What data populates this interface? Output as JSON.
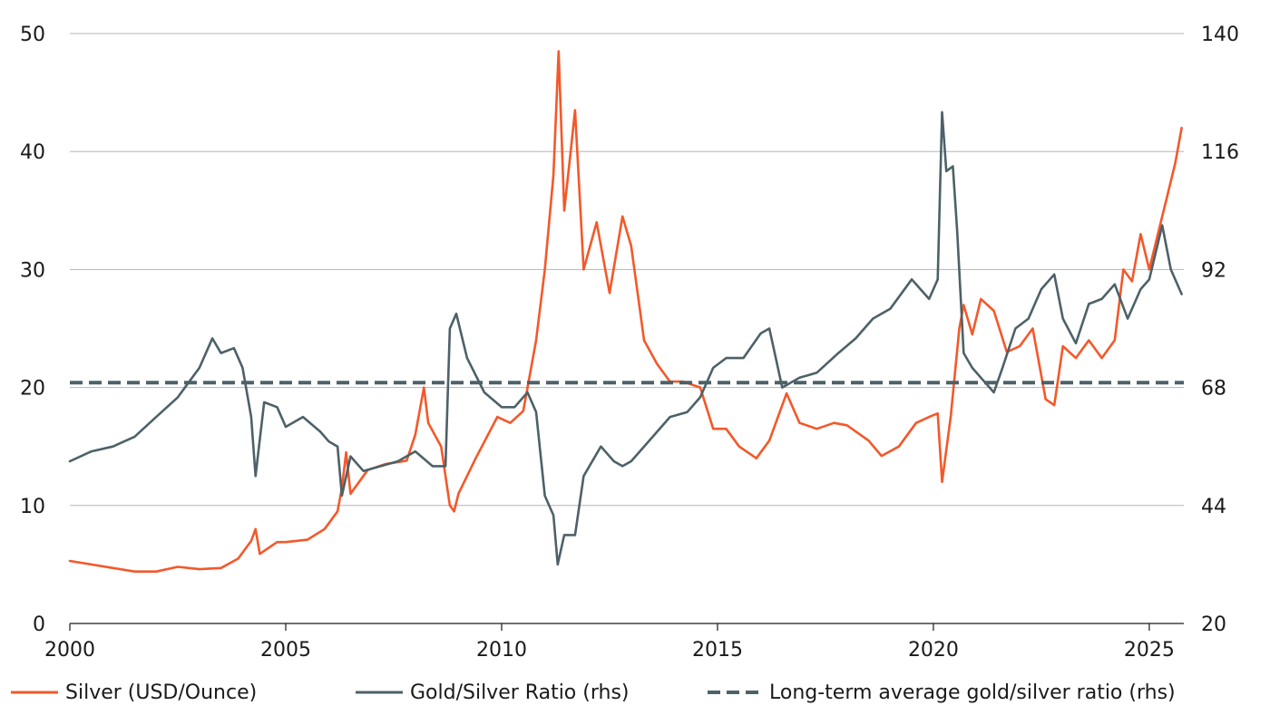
{
  "chart_data": {
    "type": "line",
    "title": "",
    "xlabel": "",
    "ylabel": "",
    "y2label": "",
    "xlim": [
      2000,
      2025.8
    ],
    "ylim": [
      0,
      50
    ],
    "y2lim": [
      20,
      140
    ],
    "x_ticks": [
      2000,
      2005,
      2010,
      2015,
      2020,
      2025
    ],
    "x_tick_labels": [
      "2000",
      "2005",
      "2010",
      "2015",
      "2020",
      "2025"
    ],
    "y_ticks": [
      0,
      10,
      20,
      30,
      40,
      50
    ],
    "y_tick_labels": [
      "0",
      "10",
      "20",
      "30",
      "40",
      "50"
    ],
    "y2_ticks": [
      20,
      44,
      68,
      92,
      116,
      140
    ],
    "y2_tick_labels": [
      "20",
      "44",
      "68",
      "92",
      "116",
      "140"
    ],
    "grid": true,
    "legend_position": "bottom",
    "series": [
      {
        "name": "Silver (USD/Ounce)",
        "axis": "left",
        "color": "#f4582a",
        "style": "solid",
        "points": [
          [
            2000.0,
            5.3
          ],
          [
            2000.5,
            5.0
          ],
          [
            2001.0,
            4.7
          ],
          [
            2001.5,
            4.4
          ],
          [
            2002.0,
            4.4
          ],
          [
            2002.5,
            4.8
          ],
          [
            2003.0,
            4.6
          ],
          [
            2003.5,
            4.7
          ],
          [
            2003.9,
            5.5
          ],
          [
            2004.2,
            7.0
          ],
          [
            2004.3,
            8.0
          ],
          [
            2004.4,
            5.9
          ],
          [
            2004.8,
            6.9
          ],
          [
            2005.0,
            6.9
          ],
          [
            2005.5,
            7.1
          ],
          [
            2005.9,
            8.0
          ],
          [
            2006.2,
            9.5
          ],
          [
            2006.3,
            11.5
          ],
          [
            2006.4,
            14.5
          ],
          [
            2006.5,
            11.0
          ],
          [
            2006.9,
            13.0
          ],
          [
            2007.3,
            13.5
          ],
          [
            2007.8,
            13.8
          ],
          [
            2008.0,
            16.0
          ],
          [
            2008.2,
            20.0
          ],
          [
            2008.3,
            17.0
          ],
          [
            2008.6,
            15.0
          ],
          [
            2008.8,
            10.0
          ],
          [
            2008.9,
            9.5
          ],
          [
            2009.0,
            11.0
          ],
          [
            2009.4,
            14.0
          ],
          [
            2009.9,
            17.5
          ],
          [
            2010.2,
            17.0
          ],
          [
            2010.5,
            18.0
          ],
          [
            2010.8,
            24.0
          ],
          [
            2011.0,
            30.0
          ],
          [
            2011.2,
            38.0
          ],
          [
            2011.32,
            48.5
          ],
          [
            2011.45,
            35.0
          ],
          [
            2011.6,
            40.0
          ],
          [
            2011.7,
            43.5
          ],
          [
            2011.9,
            30.0
          ],
          [
            2012.2,
            34.0
          ],
          [
            2012.5,
            28.0
          ],
          [
            2012.8,
            34.5
          ],
          [
            2013.0,
            32.0
          ],
          [
            2013.3,
            24.0
          ],
          [
            2013.6,
            22.0
          ],
          [
            2013.9,
            20.5
          ],
          [
            2014.2,
            20.5
          ],
          [
            2014.6,
            20.0
          ],
          [
            2014.9,
            16.5
          ],
          [
            2015.2,
            16.5
          ],
          [
            2015.5,
            15.0
          ],
          [
            2015.9,
            14.0
          ],
          [
            2016.2,
            15.5
          ],
          [
            2016.6,
            19.5
          ],
          [
            2016.9,
            17.0
          ],
          [
            2017.3,
            16.5
          ],
          [
            2017.7,
            17.0
          ],
          [
            2018.0,
            16.8
          ],
          [
            2018.5,
            15.5
          ],
          [
            2018.8,
            14.2
          ],
          [
            2019.2,
            15.0
          ],
          [
            2019.6,
            17.0
          ],
          [
            2019.9,
            17.5
          ],
          [
            2020.1,
            17.8
          ],
          [
            2020.2,
            12.0
          ],
          [
            2020.4,
            17.5
          ],
          [
            2020.6,
            25.0
          ],
          [
            2020.7,
            27.0
          ],
          [
            2020.9,
            24.5
          ],
          [
            2021.1,
            27.5
          ],
          [
            2021.4,
            26.5
          ],
          [
            2021.7,
            23.0
          ],
          [
            2022.0,
            23.5
          ],
          [
            2022.3,
            25.0
          ],
          [
            2022.6,
            19.0
          ],
          [
            2022.8,
            18.5
          ],
          [
            2023.0,
            23.5
          ],
          [
            2023.3,
            22.5
          ],
          [
            2023.6,
            24.0
          ],
          [
            2023.9,
            22.5
          ],
          [
            2024.2,
            24.0
          ],
          [
            2024.4,
            30.0
          ],
          [
            2024.6,
            29.0
          ],
          [
            2024.8,
            33.0
          ],
          [
            2025.0,
            30.0
          ],
          [
            2025.2,
            33.0
          ],
          [
            2025.4,
            36.0
          ],
          [
            2025.6,
            39.0
          ],
          [
            2025.75,
            42.0
          ]
        ]
      },
      {
        "name": "Gold/Silver Ratio (rhs)",
        "axis": "right",
        "color": "#4d6168",
        "style": "solid",
        "points": [
          [
            2000.0,
            53
          ],
          [
            2000.5,
            55
          ],
          [
            2001.0,
            56
          ],
          [
            2001.5,
            58
          ],
          [
            2002.0,
            62
          ],
          [
            2002.5,
            66
          ],
          [
            2003.0,
            72
          ],
          [
            2003.3,
            78
          ],
          [
            2003.5,
            75
          ],
          [
            2003.8,
            76
          ],
          [
            2004.0,
            72
          ],
          [
            2004.2,
            62
          ],
          [
            2004.3,
            50
          ],
          [
            2004.5,
            65
          ],
          [
            2004.8,
            64
          ],
          [
            2005.0,
            60
          ],
          [
            2005.4,
            62
          ],
          [
            2005.8,
            59
          ],
          [
            2006.0,
            57
          ],
          [
            2006.2,
            56
          ],
          [
            2006.3,
            46
          ],
          [
            2006.5,
            54
          ],
          [
            2006.8,
            51
          ],
          [
            2007.2,
            52
          ],
          [
            2007.6,
            53
          ],
          [
            2008.0,
            55
          ],
          [
            2008.4,
            52
          ],
          [
            2008.7,
            52
          ],
          [
            2008.8,
            80
          ],
          [
            2008.95,
            83
          ],
          [
            2009.2,
            74
          ],
          [
            2009.6,
            67
          ],
          [
            2010.0,
            64
          ],
          [
            2010.3,
            64
          ],
          [
            2010.6,
            67
          ],
          [
            2010.8,
            63
          ],
          [
            2011.0,
            46
          ],
          [
            2011.2,
            42
          ],
          [
            2011.3,
            32
          ],
          [
            2011.45,
            38
          ],
          [
            2011.7,
            38
          ],
          [
            2011.9,
            50
          ],
          [
            2012.3,
            56
          ],
          [
            2012.6,
            53
          ],
          [
            2012.8,
            52
          ],
          [
            2013.0,
            53
          ],
          [
            2013.5,
            58
          ],
          [
            2013.9,
            62
          ],
          [
            2014.3,
            63
          ],
          [
            2014.6,
            66
          ],
          [
            2014.9,
            72
          ],
          [
            2015.2,
            74
          ],
          [
            2015.6,
            74
          ],
          [
            2016.0,
            79
          ],
          [
            2016.2,
            80
          ],
          [
            2016.5,
            68
          ],
          [
            2016.9,
            70
          ],
          [
            2017.3,
            71
          ],
          [
            2017.8,
            75
          ],
          [
            2018.2,
            78
          ],
          [
            2018.6,
            82
          ],
          [
            2019.0,
            84
          ],
          [
            2019.5,
            90
          ],
          [
            2019.9,
            86
          ],
          [
            2020.1,
            90
          ],
          [
            2020.2,
            124
          ],
          [
            2020.3,
            112
          ],
          [
            2020.45,
            113
          ],
          [
            2020.55,
            100
          ],
          [
            2020.7,
            75
          ],
          [
            2020.9,
            72
          ],
          [
            2021.1,
            70
          ],
          [
            2021.4,
            67
          ],
          [
            2021.6,
            72
          ],
          [
            2021.9,
            80
          ],
          [
            2022.2,
            82
          ],
          [
            2022.5,
            88
          ],
          [
            2022.8,
            91
          ],
          [
            2023.0,
            82
          ],
          [
            2023.3,
            77
          ],
          [
            2023.6,
            85
          ],
          [
            2023.9,
            86
          ],
          [
            2024.2,
            89
          ],
          [
            2024.5,
            82
          ],
          [
            2024.8,
            88
          ],
          [
            2025.0,
            90
          ],
          [
            2025.3,
            101
          ],
          [
            2025.5,
            92
          ],
          [
            2025.75,
            87
          ]
        ]
      },
      {
        "name": "Long-term average gold/silver ratio (rhs)",
        "axis": "right",
        "color": "#4d6168",
        "style": "dashed",
        "points": [
          [
            2000.0,
            69
          ],
          [
            2025.8,
            69
          ]
        ]
      }
    ]
  }
}
